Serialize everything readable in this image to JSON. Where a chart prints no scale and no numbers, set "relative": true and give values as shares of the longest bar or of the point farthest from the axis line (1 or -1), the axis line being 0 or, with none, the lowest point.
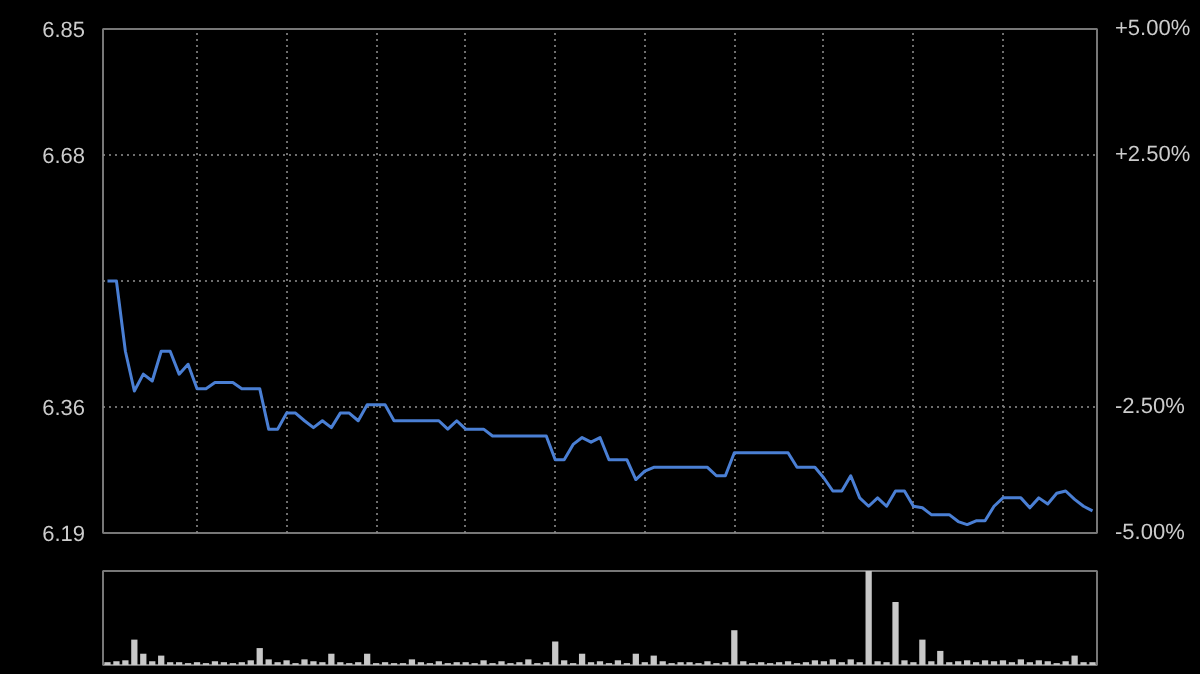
{
  "chart_data": [
    {
      "type": "line",
      "categories": [
        null,
        null,
        null,
        null,
        null,
        null,
        null,
        null,
        null,
        null,
        null,
        null,
        null,
        null,
        null,
        null,
        null,
        null,
        null,
        null,
        null,
        null,
        null,
        null,
        null,
        null,
        null,
        null,
        null,
        null,
        null,
        null,
        null,
        null,
        null,
        null,
        null,
        null,
        null,
        null,
        null,
        null,
        null,
        null,
        null,
        null,
        null,
        null,
        null,
        null,
        null,
        null,
        null,
        null,
        null,
        null,
        null,
        null,
        null,
        null,
        null,
        null,
        null,
        null,
        null,
        null,
        null,
        null,
        null,
        null,
        null,
        null,
        null,
        null,
        null,
        null,
        null,
        null,
        null,
        null,
        null,
        null,
        null,
        null,
        null,
        null,
        null,
        null,
        null,
        null,
        null,
        null,
        null,
        null,
        null,
        null,
        null,
        null,
        null,
        null,
        null,
        null,
        null,
        null,
        null,
        null,
        null,
        null,
        null,
        null,
        null
      ],
      "ylim": [
        6.19,
        6.85
      ],
      "yticks": [
        {
          "value": 6.85,
          "label": "6.85"
        },
        {
          "value": 6.685,
          "label": "6.68"
        },
        {
          "value": 6.52,
          "label": null
        },
        {
          "value": 6.355,
          "label": "6.36"
        },
        {
          "value": 6.19,
          "label": "6.19"
        }
      ],
      "y2lim": [
        -5,
        5
      ],
      "y2ticks": [
        {
          "value": 5,
          "label": "+5.00%"
        },
        {
          "value": 2.5,
          "label": "+2.50%"
        },
        {
          "value": 0,
          "label": null
        },
        {
          "value": -2.5,
          "label": "-2.50%"
        },
        {
          "value": -5,
          "label": "-5.00%"
        }
      ],
      "grid": true,
      "series": [
        {
          "color": "#4a7fd4",
          "values": [
            6.52,
            6.52,
            6.428,
            6.376,
            6.398,
            6.389,
            6.428,
            6.428,
            6.398,
            6.411,
            6.379,
            6.379,
            6.387,
            6.387,
            6.387,
            6.379,
            6.379,
            6.379,
            6.326,
            6.326,
            6.347,
            6.347,
            6.337,
            6.328,
            6.337,
            6.328,
            6.347,
            6.347,
            6.337,
            6.358,
            6.358,
            6.358,
            6.337,
            6.337,
            6.337,
            6.337,
            6.337,
            6.337,
            6.326,
            6.337,
            6.326,
            6.326,
            6.326,
            6.317,
            6.317,
            6.317,
            6.317,
            6.317,
            6.317,
            6.317,
            6.286,
            6.286,
            6.306,
            6.315,
            6.309,
            6.315,
            6.286,
            6.286,
            6.286,
            6.26,
            6.271,
            6.276,
            6.276,
            6.276,
            6.276,
            6.276,
            6.276,
            6.276,
            6.265,
            6.265,
            6.295,
            6.295,
            6.295,
            6.295,
            6.295,
            6.295,
            6.295,
            6.276,
            6.276,
            6.276,
            6.262,
            6.245,
            6.245,
            6.265,
            6.236,
            6.225,
            6.236,
            6.225,
            6.245,
            6.245,
            6.225,
            6.223,
            6.214,
            6.214,
            6.214,
            6.205,
            6.201,
            6.206,
            6.206,
            6.225,
            6.236,
            6.236,
            6.236,
            6.223,
            6.236,
            6.228,
            6.242,
            6.245,
            6.234,
            6.225,
            6.219
          ]
        }
      ]
    },
    {
      "type": "bar",
      "relative": true,
      "categories": [
        null,
        null,
        null,
        null,
        null,
        null,
        null,
        null,
        null,
        null,
        null,
        null,
        null,
        null,
        null,
        null,
        null,
        null,
        null,
        null,
        null,
        null,
        null,
        null,
        null,
        null,
        null,
        null,
        null,
        null,
        null,
        null,
        null,
        null,
        null,
        null,
        null,
        null,
        null,
        null,
        null,
        null,
        null,
        null,
        null,
        null,
        null,
        null,
        null,
        null,
        null,
        null,
        null,
        null,
        null,
        null,
        null,
        null,
        null,
        null,
        null,
        null,
        null,
        null,
        null,
        null,
        null,
        null,
        null,
        null,
        null,
        null,
        null,
        null,
        null,
        null,
        null,
        null,
        null,
        null,
        null,
        null,
        null,
        null,
        null,
        null,
        null,
        null,
        null,
        null,
        null,
        null,
        null,
        null,
        null,
        null,
        null,
        null,
        null,
        null,
        null,
        null,
        null,
        null,
        null,
        null,
        null,
        null,
        null,
        null,
        null
      ],
      "series": [
        {
          "color": "#c8c8c8",
          "values": [
            0.03,
            0.04,
            0.05,
            0.27,
            0.12,
            0.04,
            0.1,
            0.03,
            0.03,
            0.02,
            0.03,
            0.02,
            0.04,
            0.03,
            0.02,
            0.03,
            0.05,
            0.18,
            0.06,
            0.03,
            0.05,
            0.02,
            0.06,
            0.04,
            0.03,
            0.12,
            0.03,
            0.02,
            0.03,
            0.12,
            0.02,
            0.03,
            0.02,
            0.02,
            0.06,
            0.03,
            0.02,
            0.04,
            0.02,
            0.03,
            0.03,
            0.02,
            0.05,
            0.02,
            0.04,
            0.02,
            0.03,
            0.06,
            0.02,
            0.03,
            0.25,
            0.05,
            0.02,
            0.12,
            0.03,
            0.04,
            0.02,
            0.05,
            0.02,
            0.12,
            0.03,
            0.1,
            0.04,
            0.02,
            0.03,
            0.03,
            0.02,
            0.04,
            0.02,
            0.03,
            0.37,
            0.04,
            0.02,
            0.03,
            0.02,
            0.03,
            0.04,
            0.02,
            0.03,
            0.05,
            0.04,
            0.06,
            0.03,
            0.06,
            0.03,
            1.0,
            0.04,
            0.03,
            0.67,
            0.05,
            0.03,
            0.27,
            0.04,
            0.15,
            0.03,
            0.04,
            0.05,
            0.03,
            0.05,
            0.04,
            0.05,
            0.03,
            0.06,
            0.03,
            0.05,
            0.04,
            0.02,
            0.04,
            0.1,
            0.03,
            0.03
          ]
        }
      ]
    }
  ]
}
